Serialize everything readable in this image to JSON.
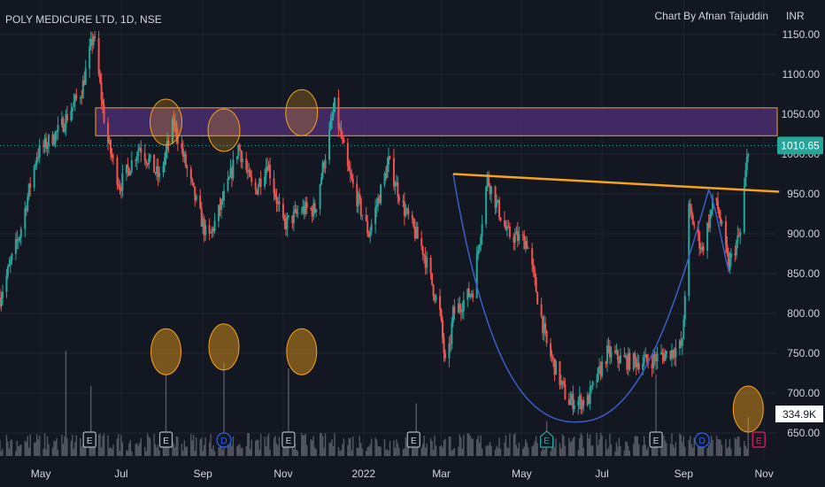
{
  "header": {
    "symbol_title": "POLY MEDICURE LTD, 1D, NSE",
    "attribution": "Chart By Afnan Tajuddin",
    "currency": "INR"
  },
  "price_badge": {
    "value": "1010.65",
    "color": "#26a69a"
  },
  "volume_badge": {
    "value": "334.9K"
  },
  "colors": {
    "background": "#131722",
    "up": "#26a69a",
    "down": "#ef5350",
    "zone_fill": "#4a2e6e",
    "zone_border": "#f7a21b",
    "trendline": "#f7a21b",
    "cup_curve": "#3b5fc7",
    "circle": "#f7a21b",
    "volume": "#6b6f7a",
    "grid": "#1f2430"
  },
  "event_markers": [
    {
      "letter": "E",
      "date": "2021-06-07",
      "type": "earnings"
    },
    {
      "letter": "E",
      "date": "2021-08-04",
      "type": "earnings"
    },
    {
      "letter": "D",
      "date": "2021-09-17",
      "type": "dividend"
    },
    {
      "letter": "E",
      "date": "2021-11-05",
      "type": "earnings"
    },
    {
      "letter": "E",
      "date": "2022-02-08",
      "type": "earnings"
    },
    {
      "letter": "E",
      "date": "2022-05-20",
      "type": "earnings-upcoming"
    },
    {
      "letter": "E",
      "date": "2022-08-11",
      "type": "earnings"
    },
    {
      "letter": "D",
      "date": "2022-09-15",
      "type": "dividend"
    },
    {
      "letter": "E",
      "date": "2022-10-28",
      "type": "earnings-future"
    }
  ],
  "chart_data": {
    "type": "candlestick",
    "title": "POLY MEDICURE LTD, 1D, NSE",
    "y_unit": "INR",
    "ylim": [
      620,
      1175
    ],
    "y_ticks": [
      "1150.00",
      "1100.00",
      "1050.00",
      "1000.00",
      "950.00",
      "900.00",
      "850.00",
      "800.00",
      "750.00",
      "700.00",
      "650.00"
    ],
    "x_ticks": [
      "May",
      "Jul",
      "Sep",
      "Nov",
      "2022",
      "Mar",
      "May",
      "Jul",
      "Sep",
      "Nov"
    ],
    "x_range": [
      "2021-03-31",
      "2022-11-11"
    ],
    "last_price": 1010.65,
    "resistance_zone": {
      "from": 1023,
      "to": 1058
    },
    "trendline": {
      "start": [
        "2022-03-10",
        975
      ],
      "end": [
        "2022-10-20",
        955
      ]
    },
    "cup_curve": [
      "2022-03-10",
      "2022-06-20",
      "2022-09-20"
    ],
    "price_path": [
      [
        "2021-03-31",
        820
      ],
      [
        "2021-04-15",
        900
      ],
      [
        "2021-04-28",
        1000
      ],
      [
        "2021-05-15",
        1030
      ],
      [
        "2021-06-01",
        1080
      ],
      [
        "2021-06-10",
        1150
      ],
      [
        "2021-06-20",
        1020
      ],
      [
        "2021-06-30",
        960
      ],
      [
        "2021-07-15",
        1010
      ],
      [
        "2021-07-30",
        970
      ],
      [
        "2021-08-10",
        1040
      ],
      [
        "2021-08-25",
        950
      ],
      [
        "2021-09-05",
        890
      ],
      [
        "2021-09-20",
        960
      ],
      [
        "2021-09-28",
        1010
      ],
      [
        "2021-10-10",
        950
      ],
      [
        "2021-10-20",
        990
      ],
      [
        "2021-11-01",
        910
      ],
      [
        "2021-11-15",
        930
      ],
      [
        "2021-11-25",
        930
      ],
      [
        "2021-12-10",
        1060
      ],
      [
        "2021-12-20",
        980
      ],
      [
        "2022-01-05",
        900
      ],
      [
        "2022-01-20",
        990
      ],
      [
        "2022-02-01",
        930
      ],
      [
        "2022-02-15",
        880
      ],
      [
        "2022-02-28",
        800
      ],
      [
        "2022-03-05",
        720
      ],
      [
        "2022-03-10",
        800
      ],
      [
        "2022-03-25",
        830
      ],
      [
        "2022-04-05",
        970
      ],
      [
        "2022-04-20",
        900
      ],
      [
        "2022-05-05",
        890
      ],
      [
        "2022-05-20",
        760
      ],
      [
        "2022-06-05",
        690
      ],
      [
        "2022-06-20",
        690
      ],
      [
        "2022-07-05",
        750
      ],
      [
        "2022-07-20",
        740
      ],
      [
        "2022-08-05",
        740
      ],
      [
        "2022-08-20",
        750
      ],
      [
        "2022-08-31",
        760
      ],
      [
        "2022-09-05",
        930
      ],
      [
        "2022-09-15",
        880
      ],
      [
        "2022-09-25",
        950
      ],
      [
        "2022-10-05",
        860
      ],
      [
        "2022-10-14",
        900
      ],
      [
        "2022-10-20",
        1010.65
      ]
    ],
    "volume_spikes_k": [
      [
        "2021-05-20",
        900
      ],
      [
        "2021-06-08",
        600
      ],
      [
        "2021-08-04",
        700
      ],
      [
        "2021-09-17",
        800
      ],
      [
        "2021-11-05",
        750
      ],
      [
        "2022-02-10",
        450
      ],
      [
        "2022-05-20",
        300
      ],
      [
        "2022-08-11",
        700
      ],
      [
        "2022-10-20",
        334.9
      ]
    ],
    "volume_max_k": 1100
  }
}
